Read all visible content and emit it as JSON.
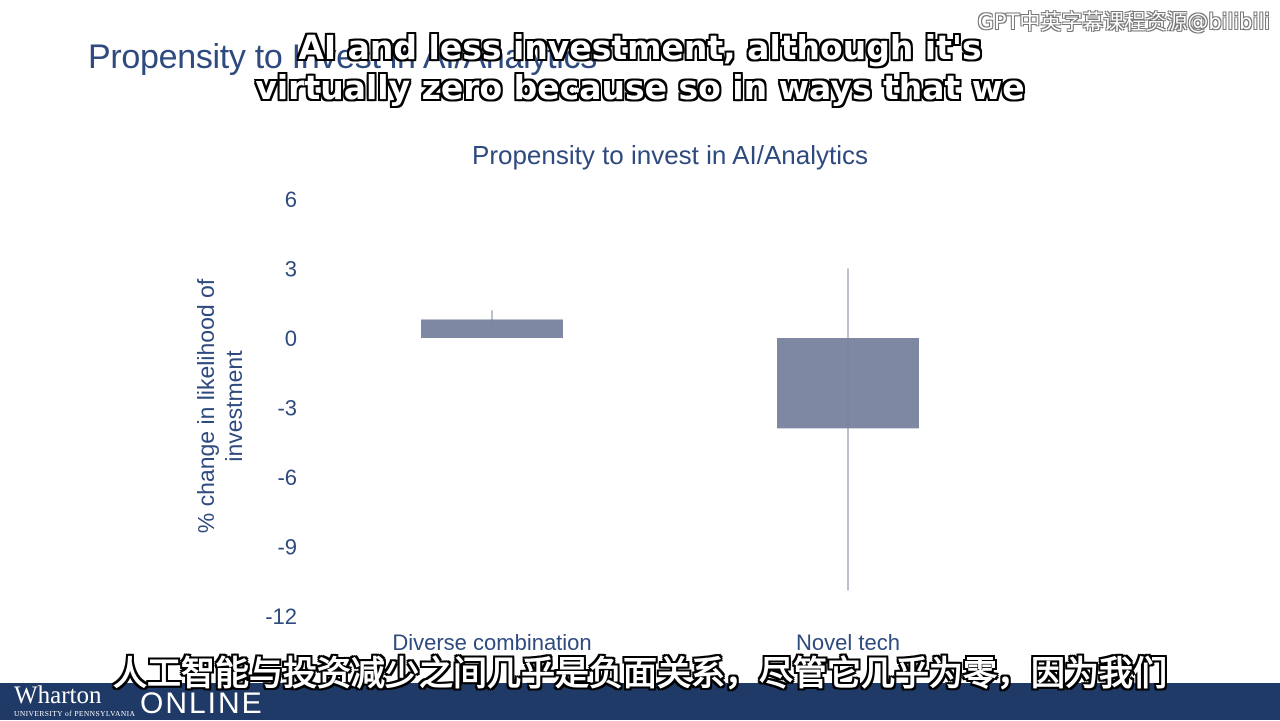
{
  "slide": {
    "title": "Propensity to Invest in AI/Analytics"
  },
  "watermark": "GPT中英字幕课程资源@bilibili",
  "subtitles": {
    "english_line1": "AI and less investment, although it's",
    "english_line2": "virtually zero because so in ways that we",
    "chinese": "人工智能与投资减少之间几乎是负面关系，尽管它几乎为零，因为我们"
  },
  "footer": {
    "wordmark": "Wharton",
    "wordmark_sub": "UNIVERSITY of PENNSYLVANIA",
    "online": "ONLINE",
    "bar_color": "#1f3a66"
  },
  "chart_data": {
    "type": "bar",
    "title": "Propensity to invest in AI/Analytics",
    "ylabel_line1": "% change in likelihood of",
    "ylabel_line2": "investment",
    "categories": [
      "Diverse combination",
      "Novel tech"
    ],
    "values": [
      0.8,
      -3.9
    ],
    "error_bars": [
      {
        "low": 0.6,
        "high": 1.2
      },
      {
        "low": -10.9,
        "high": 3.0
      }
    ],
    "ylim": [
      -12,
      6
    ],
    "yticks": [
      6,
      3,
      0,
      -3,
      -6,
      -9,
      -12
    ],
    "grid": false,
    "legend": "none",
    "bar_color": "#7f88a2",
    "text_color": "#2f4a7f"
  }
}
